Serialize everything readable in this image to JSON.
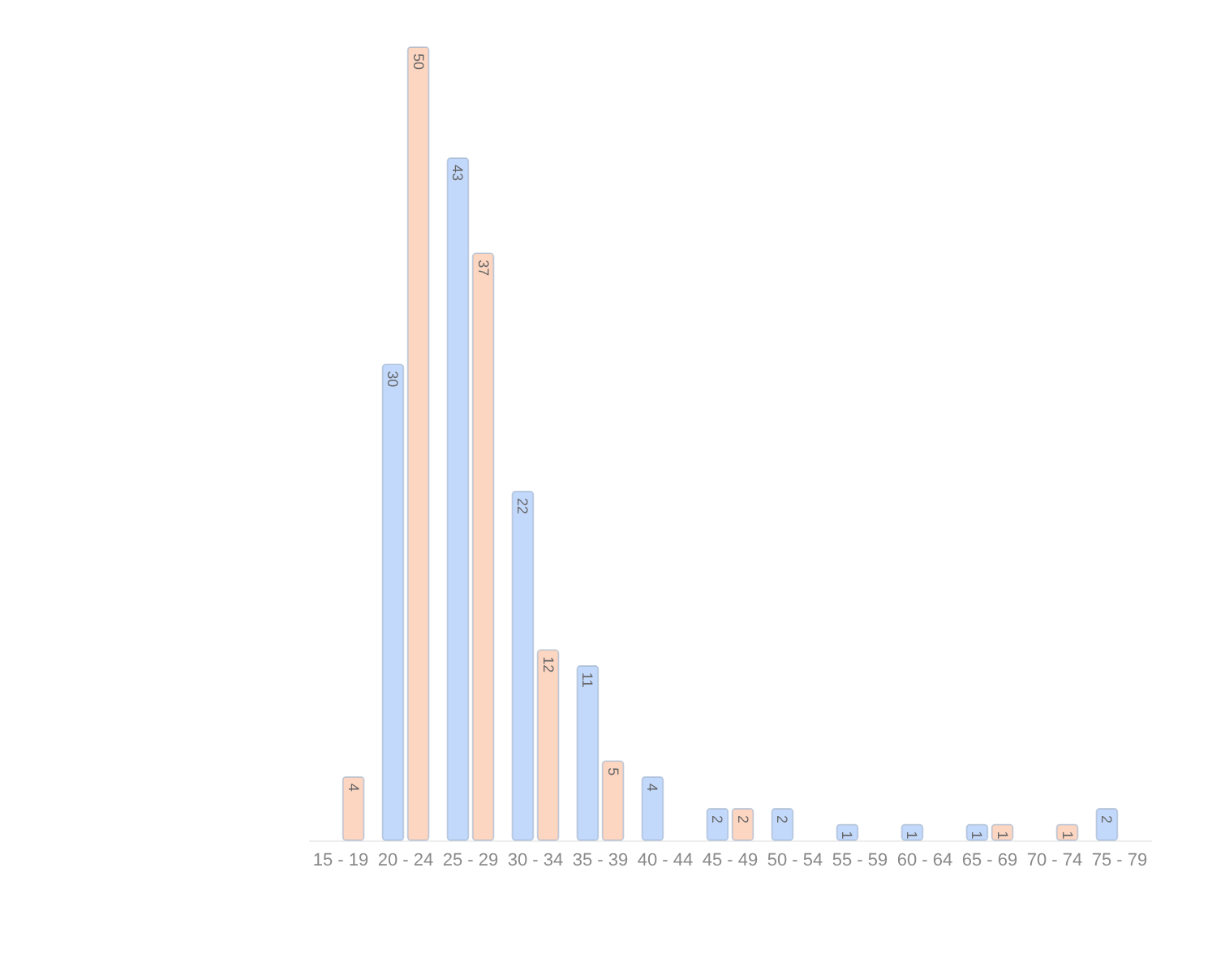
{
  "chart_data": {
    "type": "bar",
    "categories": [
      "15 - 19",
      "20 - 24",
      "25 - 29",
      "30 - 34",
      "35 - 39",
      "40 - 44",
      "45 - 49",
      "50 - 54",
      "55 - 59",
      "60 - 64",
      "65 - 69",
      "70 - 74",
      "75 - 79"
    ],
    "series": [
      {
        "color": "#c3d9fc",
        "values": [
          null,
          30,
          43,
          22,
          11,
          4,
          2,
          2,
          1,
          1,
          1,
          null,
          2
        ]
      },
      {
        "color": "#fdd6c2",
        "values": [
          4,
          50,
          37,
          12,
          5,
          null,
          2,
          null,
          null,
          null,
          1,
          1,
          null
        ]
      }
    ],
    "data_labels": true
  }
}
